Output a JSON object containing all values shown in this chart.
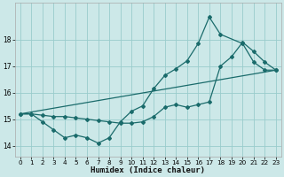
{
  "xlabel": "Humidex (Indice chaleur)",
  "bg_color": "#cce8e8",
  "grid_color": "#99cccc",
  "line_color": "#1a6b6b",
  "xlim": [
    -0.5,
    23.5
  ],
  "ylim": [
    13.6,
    19.4
  ],
  "yticks": [
    14,
    15,
    16,
    17,
    18
  ],
  "xticks": [
    0,
    1,
    2,
    3,
    4,
    5,
    6,
    7,
    8,
    9,
    10,
    11,
    12,
    13,
    14,
    15,
    16,
    17,
    18,
    19,
    20,
    21,
    22,
    23
  ],
  "line1_x": [
    0,
    1,
    2,
    3,
    4,
    5,
    6,
    7,
    8,
    9,
    10,
    11,
    12,
    13,
    14,
    15,
    16,
    17,
    18,
    20,
    21,
    22,
    23
  ],
  "line1_y": [
    15.2,
    15.2,
    14.9,
    14.6,
    14.3,
    14.4,
    14.3,
    14.1,
    14.3,
    14.9,
    15.3,
    15.5,
    16.15,
    16.65,
    16.9,
    17.2,
    17.85,
    18.85,
    18.2,
    17.85,
    17.15,
    16.85,
    16.85
  ],
  "line2_x": [
    0,
    1,
    2,
    3,
    4,
    5,
    6,
    7,
    8,
    9,
    10,
    11,
    12,
    13,
    14,
    15,
    16,
    17,
    18,
    19,
    20,
    21,
    22,
    23
  ],
  "line2_y": [
    15.2,
    15.2,
    15.15,
    15.1,
    15.1,
    15.05,
    15.0,
    14.95,
    14.9,
    14.85,
    14.85,
    14.9,
    15.1,
    15.45,
    15.55,
    15.45,
    15.55,
    15.65,
    17.0,
    17.35,
    17.9,
    17.55,
    17.15,
    16.85
  ],
  "line3_x": [
    0,
    23
  ],
  "line3_y": [
    15.2,
    16.85
  ]
}
